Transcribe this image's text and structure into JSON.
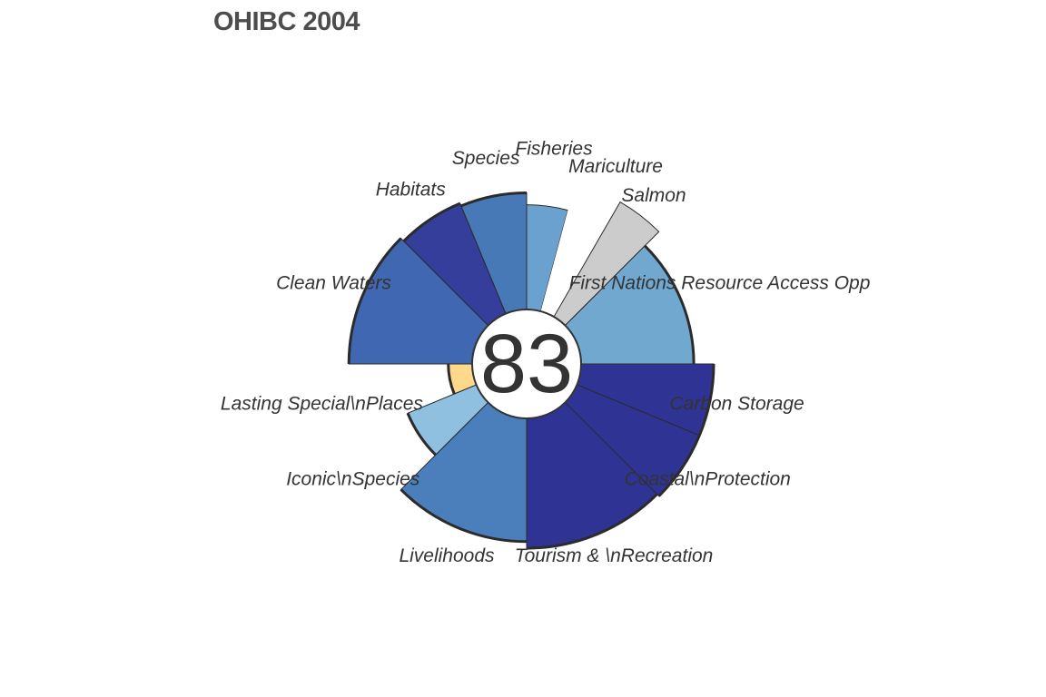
{
  "chart_data": {
    "type": "flower",
    "title": "OHIBC 2004",
    "center_score": "83",
    "max_score": 100,
    "petals": [
      {
        "label": "Fisheries",
        "score": 79,
        "weight": 1.0,
        "color": "#6aa1ce",
        "outlined": false
      },
      {
        "label": "Mariculture",
        "score": null,
        "weight": 1.0,
        "color": "#ffffff",
        "outlined": false
      },
      {
        "label": "Salmon",
        "score": null,
        "weight": 1.0,
        "color": "#cccccc",
        "outlined": false
      },
      {
        "label": "First Nations Resource Access Opp",
        "score": 85,
        "weight": 3.0,
        "color": "#70a8d0",
        "outlined": true
      },
      {
        "label": "Carbon Storage",
        "score": 100,
        "weight": 1.5,
        "color": "#2f3494",
        "outlined": true
      },
      {
        "label": "Coastal\\nProtection",
        "score": 100,
        "weight": 1.5,
        "color": "#2f3494",
        "outlined": true
      },
      {
        "label": "Tourism & \\nRecreation",
        "score": 98,
        "weight": 3.0,
        "color": "#2f3494",
        "outlined": true
      },
      {
        "label": "Livelihoods",
        "score": 93,
        "weight": 3.0,
        "color": "#4a7fbb",
        "outlined": true
      },
      {
        "label": "Iconic\\nSpecies",
        "score": 56,
        "weight": 1.5,
        "color": "#8fc0df",
        "outlined": true
      },
      {
        "label": "Lasting Special\\nPlaces",
        "score": 18,
        "weight": 1.5,
        "color": "#fed98b",
        "outlined": true
      },
      {
        "label": "Clean Waters",
        "score": 93,
        "weight": 3.0,
        "color": "#4067b1",
        "outlined": true
      },
      {
        "label": "Habitats",
        "score": 90,
        "weight": 1.5,
        "color": "#353f9b",
        "outlined": true
      },
      {
        "label": "Species",
        "score": 88,
        "weight": 1.5,
        "color": "#4779b6",
        "outlined": true
      }
    ]
  }
}
